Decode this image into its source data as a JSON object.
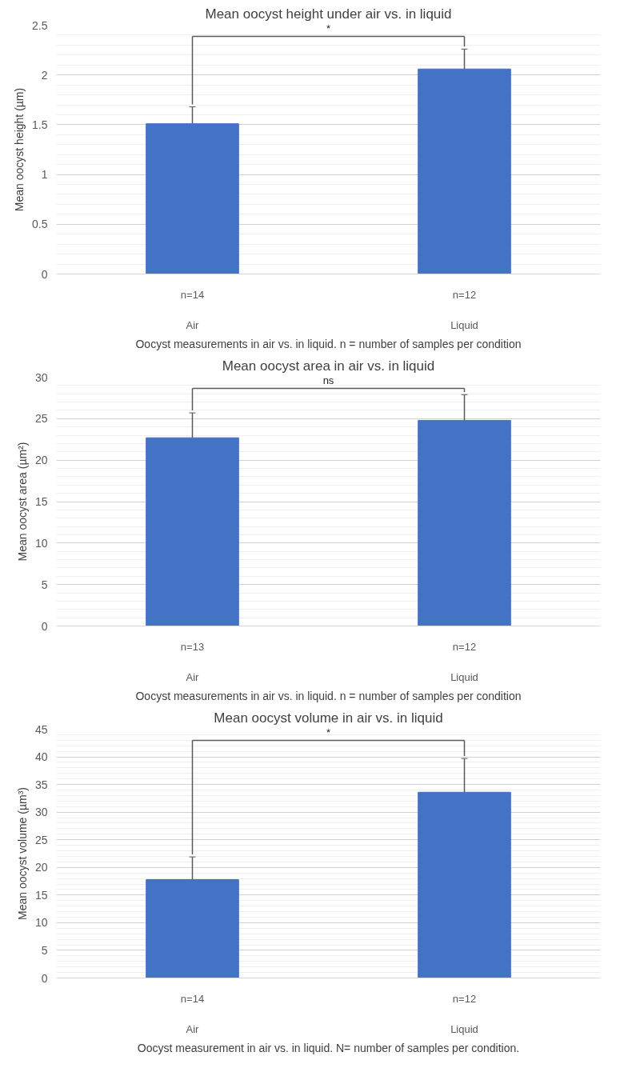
{
  "chart_data": [
    {
      "type": "bar",
      "title": "Mean oocyst height under air vs. in liquid",
      "xlabel": "Oocyst measurements in air vs. in liquid. n = number of samples per condition",
      "ylabel": "Mean oocyst height (µm)",
      "categories": [
        "Air",
        "Liquid"
      ],
      "values": [
        1.51,
        2.06
      ],
      "errors": [
        0.17,
        0.2
      ],
      "color": "#4472c4",
      "ylim": [
        0,
        2.5
      ],
      "yticks": [
        {
          "value": 0,
          "label": "0"
        },
        0.5,
        {
          "value": 1,
          "label": "1"
        },
        1.5,
        {
          "value": 2,
          "label": "2"
        },
        2.5
      ],
      "grid": "y",
      "annotations": [
        "n=14",
        "n=12",
        "*"
      ]
    },
    {
      "type": "bar",
      "title": "Mean oocyst area in air vs. in liquid",
      "xlabel": "Oocyst measurements in air vs. in liquid. n = number of samples per condition",
      "ylabel": "Mean oocyst area (µm²)",
      "categories": [
        "Air",
        "Liquid"
      ],
      "values": [
        22.7,
        24.8
      ],
      "errors": [
        3.0,
        3.1
      ],
      "color": "#4472c4",
      "ylim": [
        0,
        30
      ],
      "yticks": [
        0,
        5,
        10,
        15,
        20,
        25,
        30
      ],
      "grid": "y",
      "annotations": [
        "n=13",
        "n=12",
        "ns"
      ]
    },
    {
      "type": "bar",
      "title": "Mean oocyst volume in air vs. in liquid",
      "xlabel": "Oocyst measurement in air vs. in liquid. N= number of samples per condition.",
      "ylabel": "Mean oocyst volume (µm³)",
      "categories": [
        "Air",
        "Liquid"
      ],
      "values": [
        17.8,
        33.6
      ],
      "errors": [
        4.1,
        6.1
      ],
      "color": "#4472c4",
      "ylim": [
        0,
        45
      ],
      "yticks": [
        0,
        5,
        10,
        15,
        20,
        25,
        30,
        35,
        40,
        45
      ],
      "grid": "y",
      "annotations": [
        "n=14",
        "n=12",
        "*"
      ]
    }
  ]
}
